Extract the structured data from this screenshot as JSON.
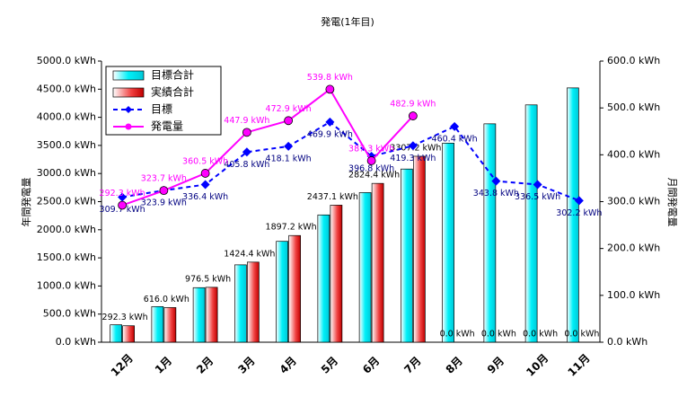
{
  "chart_data": {
    "type": "combo",
    "title": "発電(1年目)",
    "y_label": "年間発電量",
    "y2_label": "月間発電量",
    "categories": [
      "12月",
      "1月",
      "2月",
      "3月",
      "4月",
      "5月",
      "6月",
      "7月",
      "8月",
      "9月",
      "10月",
      "11月"
    ],
    "ylim": [
      0,
      5000
    ],
    "yticks": [
      {
        "value": 0,
        "label": "0.0 kWh"
      },
      {
        "value": 500,
        "label": "500.0 kWh"
      },
      {
        "value": 1000,
        "label": "1000.0 kWh"
      },
      {
        "value": 1500,
        "label": "1500.0 kWh"
      },
      {
        "value": 2000,
        "label": "2000.0 kWh"
      },
      {
        "value": 2500,
        "label": "2500.0 kWh"
      },
      {
        "value": 3000,
        "label": "3000.0 kWh"
      },
      {
        "value": 3500,
        "label": "3500.0 kWh"
      },
      {
        "value": 4000,
        "label": "4000.0 kWh"
      },
      {
        "value": 4500,
        "label": "4500.0 kWh"
      },
      {
        "value": 5000,
        "label": "5000.0 kWh"
      }
    ],
    "y2lim": [
      0,
      600
    ],
    "y2ticks": [
      {
        "value": 0,
        "label": "0.0 kWh"
      },
      {
        "value": 100,
        "label": "100.0 kWh"
      },
      {
        "value": 200,
        "label": "200.0 kWh"
      },
      {
        "value": 300,
        "label": "300.0 kWh"
      },
      {
        "value": 400,
        "label": "400.0 kWh"
      },
      {
        "value": 500,
        "label": "500.0 kWh"
      },
      {
        "value": 600,
        "label": "600.0 kWh"
      }
    ],
    "series": [
      {
        "name": "目標合計",
        "type": "bar",
        "color": "#00e8f0",
        "values": [
          309.7,
          633.6,
          970.0,
          1375.8,
          1793.9,
          2263.8,
          2660.6,
          3079.9,
          3540.3,
          3884.1,
          4220.6,
          4522.8
        ]
      },
      {
        "name": "実績合計",
        "type": "bar",
        "color": "#e82020",
        "values": [
          292.3,
          616.0,
          976.5,
          1424.4,
          1897.2,
          2437.1,
          2824.4,
          3307.2,
          0,
          0,
          0,
          0
        ],
        "value_labels": [
          "292.3 kWh",
          "616.0 kWh",
          "976.5 kWh",
          "1424.4 kWh",
          "1897.2 kWh",
          "2437.1 kWh",
          "2824.4 kWh",
          "3307.2 kWh",
          "0.0 kWh",
          "0.0 kWh",
          "0.0 kWh",
          "0.0 kWh"
        ]
      },
      {
        "name": "目標",
        "type": "line",
        "axis": "y2",
        "color": "#0000ff",
        "marker": "diamond",
        "dashed": true,
        "values": [
          309.7,
          323.9,
          336.4,
          405.8,
          418.1,
          469.9,
          396.8,
          419.3,
          460.4,
          343.8,
          336.5,
          302.2
        ],
        "value_labels": [
          "309.7 kWh",
          "323.9 kWh",
          "336.4 kWh",
          "405.8 kWh",
          "418.1 kWh",
          "469.9 kWh",
          "396.8 kWh",
          "419.3 kWh",
          "460.4 kWh",
          "343.8 kWh",
          "336.5 kWh",
          "302.2 kWh"
        ]
      },
      {
        "name": "発電量",
        "type": "line",
        "axis": "y2",
        "color": "#ff00ff",
        "marker": "circle",
        "dashed": false,
        "values": [
          292.3,
          323.7,
          360.5,
          447.9,
          472.9,
          539.8,
          387.3,
          482.9,
          null,
          null,
          null,
          null
        ],
        "value_labels": [
          "292.3 kWh",
          "323.7 kWh",
          "360.5 kWh",
          "447.9 kWh",
          "472.9 kWh",
          "539.8 kWh",
          "387.3 kWh",
          "482.9 kWh",
          null,
          null,
          null,
          null
        ]
      }
    ],
    "legend": "top-left"
  }
}
